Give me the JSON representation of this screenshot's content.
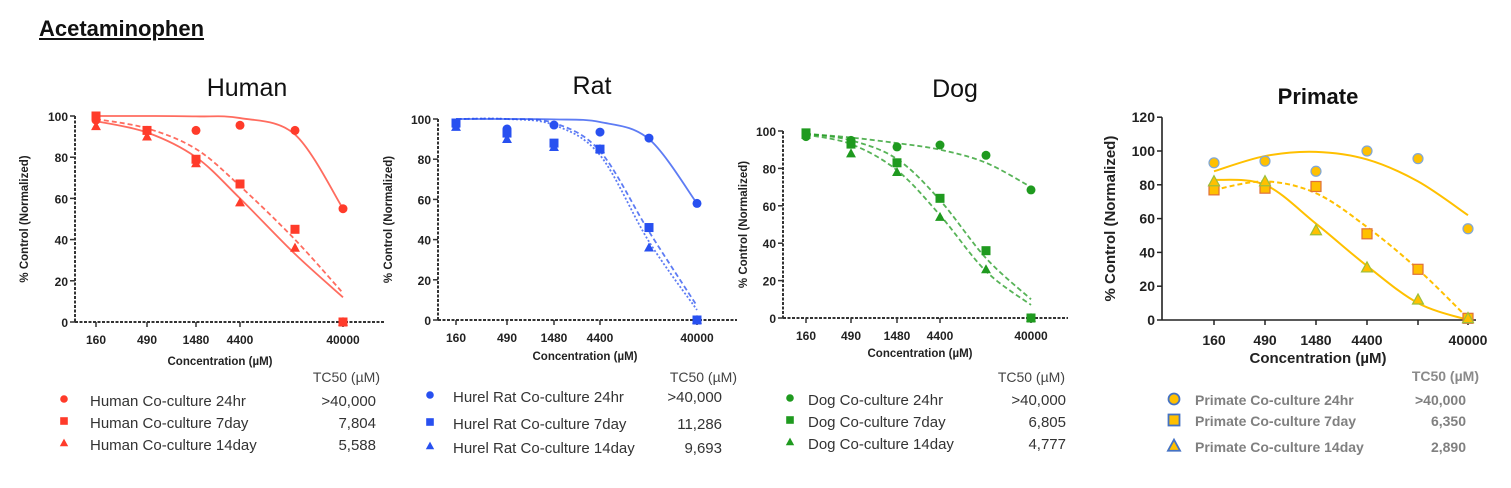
{
  "page": {
    "title": "Acetaminophen"
  },
  "chart_data": [
    {
      "type": "scatter",
      "title": "Human",
      "xlabel": "Concentration (µM)",
      "ylabel": "% Control  (Normalized)",
      "x_scale": "log",
      "x": [
        160,
        490,
        1480,
        4400,
        13200,
        40000
      ],
      "x_tick_labels": [
        "160",
        "490",
        "1480",
        "4400",
        "40000"
      ],
      "ylim": [
        0,
        100
      ],
      "y_ticks": [
        0,
        20,
        40,
        60,
        80,
        100
      ],
      "color": "#ff3b2a",
      "tc50_header": "TC50 (µM)",
      "series": [
        {
          "name": "Human Co-culture 24hr",
          "marker": "circle",
          "line": "solid",
          "tc50": ">40,000",
          "values": [
            98,
            93,
            93,
            95.5,
            93,
            55
          ],
          "fit": [
            100,
            100,
            99.8,
            99,
            91,
            55
          ]
        },
        {
          "name": "Human Co-culture 7day",
          "marker": "square",
          "line": "dashed",
          "tc50": "7,804",
          "values": [
            100,
            93,
            79,
            67,
            45,
            0
          ],
          "fit": [
            98.5,
            94,
            84,
            66,
            40,
            14
          ]
        },
        {
          "name": "Human Co-culture 14day",
          "marker": "triangle",
          "line": "solid",
          "tc50": "5,588",
          "values": [
            95,
            90,
            77,
            58,
            36,
            0
          ],
          "fit": [
            97.5,
            92,
            80,
            60,
            33,
            12
          ]
        }
      ]
    },
    {
      "type": "scatter",
      "title": "Rat",
      "xlabel": "Concentration (µM)",
      "ylabel": "% Control  (Normalized)",
      "x_scale": "log",
      "x": [
        160,
        490,
        1480,
        4400,
        13200,
        40000
      ],
      "x_tick_labels": [
        "160",
        "490",
        "1480",
        "4400",
        "40000"
      ],
      "ylim": [
        0,
        100
      ],
      "y_ticks": [
        0,
        20,
        40,
        60,
        80,
        100
      ],
      "color": "#2850f0",
      "tc50_header": "TC50 (µM)",
      "series": [
        {
          "name": "Hurel Rat Co-culture 24hr",
          "marker": "circle",
          "line": "solid",
          "tc50": ">40,000",
          "values": [
            97,
            95,
            97,
            93.5,
            90.5,
            58
          ],
          "fit": [
            100,
            100,
            99.8,
            98.5,
            90,
            58
          ]
        },
        {
          "name": "Hurel Rat Co-culture 7day",
          "marker": "square",
          "line": "dashed",
          "tc50": "11,286",
          "values": [
            98,
            93,
            88,
            85,
            46,
            0
          ],
          "fit": [
            100,
            100,
            98,
            84,
            44,
            7
          ]
        },
        {
          "name": "Hurel Rat Co-culture 14day",
          "marker": "triangle",
          "line": "dotted",
          "tc50": "9,693",
          "values": [
            96,
            90,
            86,
            85,
            36,
            0
          ],
          "fit": [
            100,
            100,
            97,
            82,
            39,
            5
          ]
        }
      ]
    },
    {
      "type": "scatter",
      "title": "Dog",
      "xlabel": "Concentration (µM)",
      "ylabel": "% Control  (Normalized)",
      "x_scale": "log",
      "x": [
        160,
        490,
        1480,
        4400,
        13200,
        40000
      ],
      "x_tick_labels": [
        "160",
        "490",
        "1480",
        "4400",
        "40000"
      ],
      "ylim": [
        0,
        100
      ],
      "y_ticks": [
        0,
        20,
        40,
        60,
        80,
        100
      ],
      "color": "#1f9a1f",
      "tc50_header": "TC50 (µM)",
      "series": [
        {
          "name": "Dog Co-culture 24hr",
          "marker": "circle",
          "line": "dashed",
          "tc50": ">40,000",
          "values": [
            97,
            95,
            91.5,
            92.5,
            87,
            68.5
          ],
          "fit": [
            98.5,
            96.5,
            93.5,
            90,
            83,
            70
          ]
        },
        {
          "name": "Dog Co-culture 7day",
          "marker": "square",
          "line": "dashed",
          "tc50": "6,805",
          "values": [
            99,
            93,
            83,
            64,
            36,
            0
          ],
          "fit": [
            98.5,
            95,
            85,
            63,
            32,
            10
          ]
        },
        {
          "name": "Dog Co-culture 14day",
          "marker": "triangle",
          "line": "dashed",
          "tc50": "4,777",
          "values": [
            98,
            88,
            78,
            54,
            26,
            0
          ],
          "fit": [
            98,
            93,
            79,
            55,
            25,
            7
          ]
        }
      ]
    },
    {
      "type": "scatter",
      "title": "Primate",
      "xlabel": "Concentration  (µM)",
      "ylabel": "% Control (Normalized)",
      "x_scale": "log",
      "x": [
        160,
        490,
        1480,
        4400,
        13200,
        40000
      ],
      "x_tick_labels": [
        "160",
        "490",
        "1480",
        "4400",
        "40000"
      ],
      "ylim": [
        0,
        120
      ],
      "y_ticks": [
        0,
        20,
        40,
        60,
        80,
        100,
        120
      ],
      "color": "#ffc000",
      "outline_colors": {
        "circle": "#7fa7d9",
        "square": "#e0703a",
        "triangle": "#9cbf3a",
        "legend": "#4472c4"
      },
      "tc50_header": "TC50 (µM)",
      "series": [
        {
          "name": "Primate Co-culture 24hr",
          "marker": "circle",
          "line": "solid",
          "tc50": ">40,000",
          "values": [
            93,
            94,
            88,
            100,
            95.5,
            54
          ],
          "fit": [
            88,
            97,
            99.5,
            95,
            82,
            62
          ]
        },
        {
          "name": "Primate Co-culture 7day",
          "marker": "square",
          "line": "dashed",
          "tc50": "6,350",
          "values": [
            77,
            78,
            79,
            51,
            30,
            1
          ],
          "fit": [
            77,
            82,
            75,
            55,
            30,
            1
          ]
        },
        {
          "name": "Primate Co-culture 14day",
          "marker": "triangle",
          "line": "solid",
          "tc50": "2,890",
          "values": [
            82,
            82,
            53,
            31,
            12,
            1
          ],
          "fit": [
            83,
            80,
            57,
            32,
            10,
            0
          ]
        }
      ]
    }
  ]
}
